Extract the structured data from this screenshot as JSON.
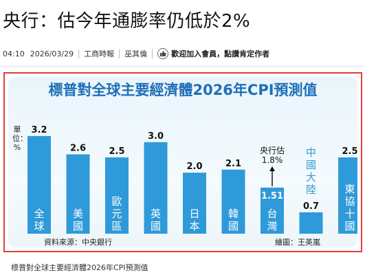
{
  "article": {
    "headline": "央行：估今年通膨率仍低於2%",
    "time": "04:10",
    "date": "2026/03/29",
    "source": "工商時報",
    "author": "巫其倫",
    "promo": "歡迎加入會員，點讚肯定作者",
    "caption": "標普對全球主要經濟體2026年CPI預測值"
  },
  "colors": {
    "bar": "#2f9ad9",
    "bar_light": "#6cc0f0",
    "title": "#1d6fb8",
    "frame": "#e23b3b"
  },
  "chart_data": {
    "type": "bar",
    "title": "標普對全球主要經濟體2026年CPI預測值",
    "ylabel": "單位：%",
    "categories": [
      "全球",
      "美國",
      "歐元區",
      "英國",
      "日本",
      "韓國",
      "台灣",
      "中國大陸",
      "東協十國"
    ],
    "values": [
      3.2,
      2.6,
      2.5,
      3.0,
      2.0,
      2.1,
      1.51,
      0.7,
      2.5
    ],
    "value_labels": [
      "3.2",
      "2.6",
      "2.5",
      "3.0",
      "2.0",
      "2.1",
      "1.51",
      "0.7",
      "2.5"
    ],
    "ylim": [
      0,
      3.4
    ],
    "annotation": {
      "category": "台灣",
      "label": "央行估",
      "value": "1.8%"
    },
    "source": "資料來源：中央銀行",
    "credit": "繪圖：王英嵐",
    "grid": false,
    "legend": "none"
  }
}
